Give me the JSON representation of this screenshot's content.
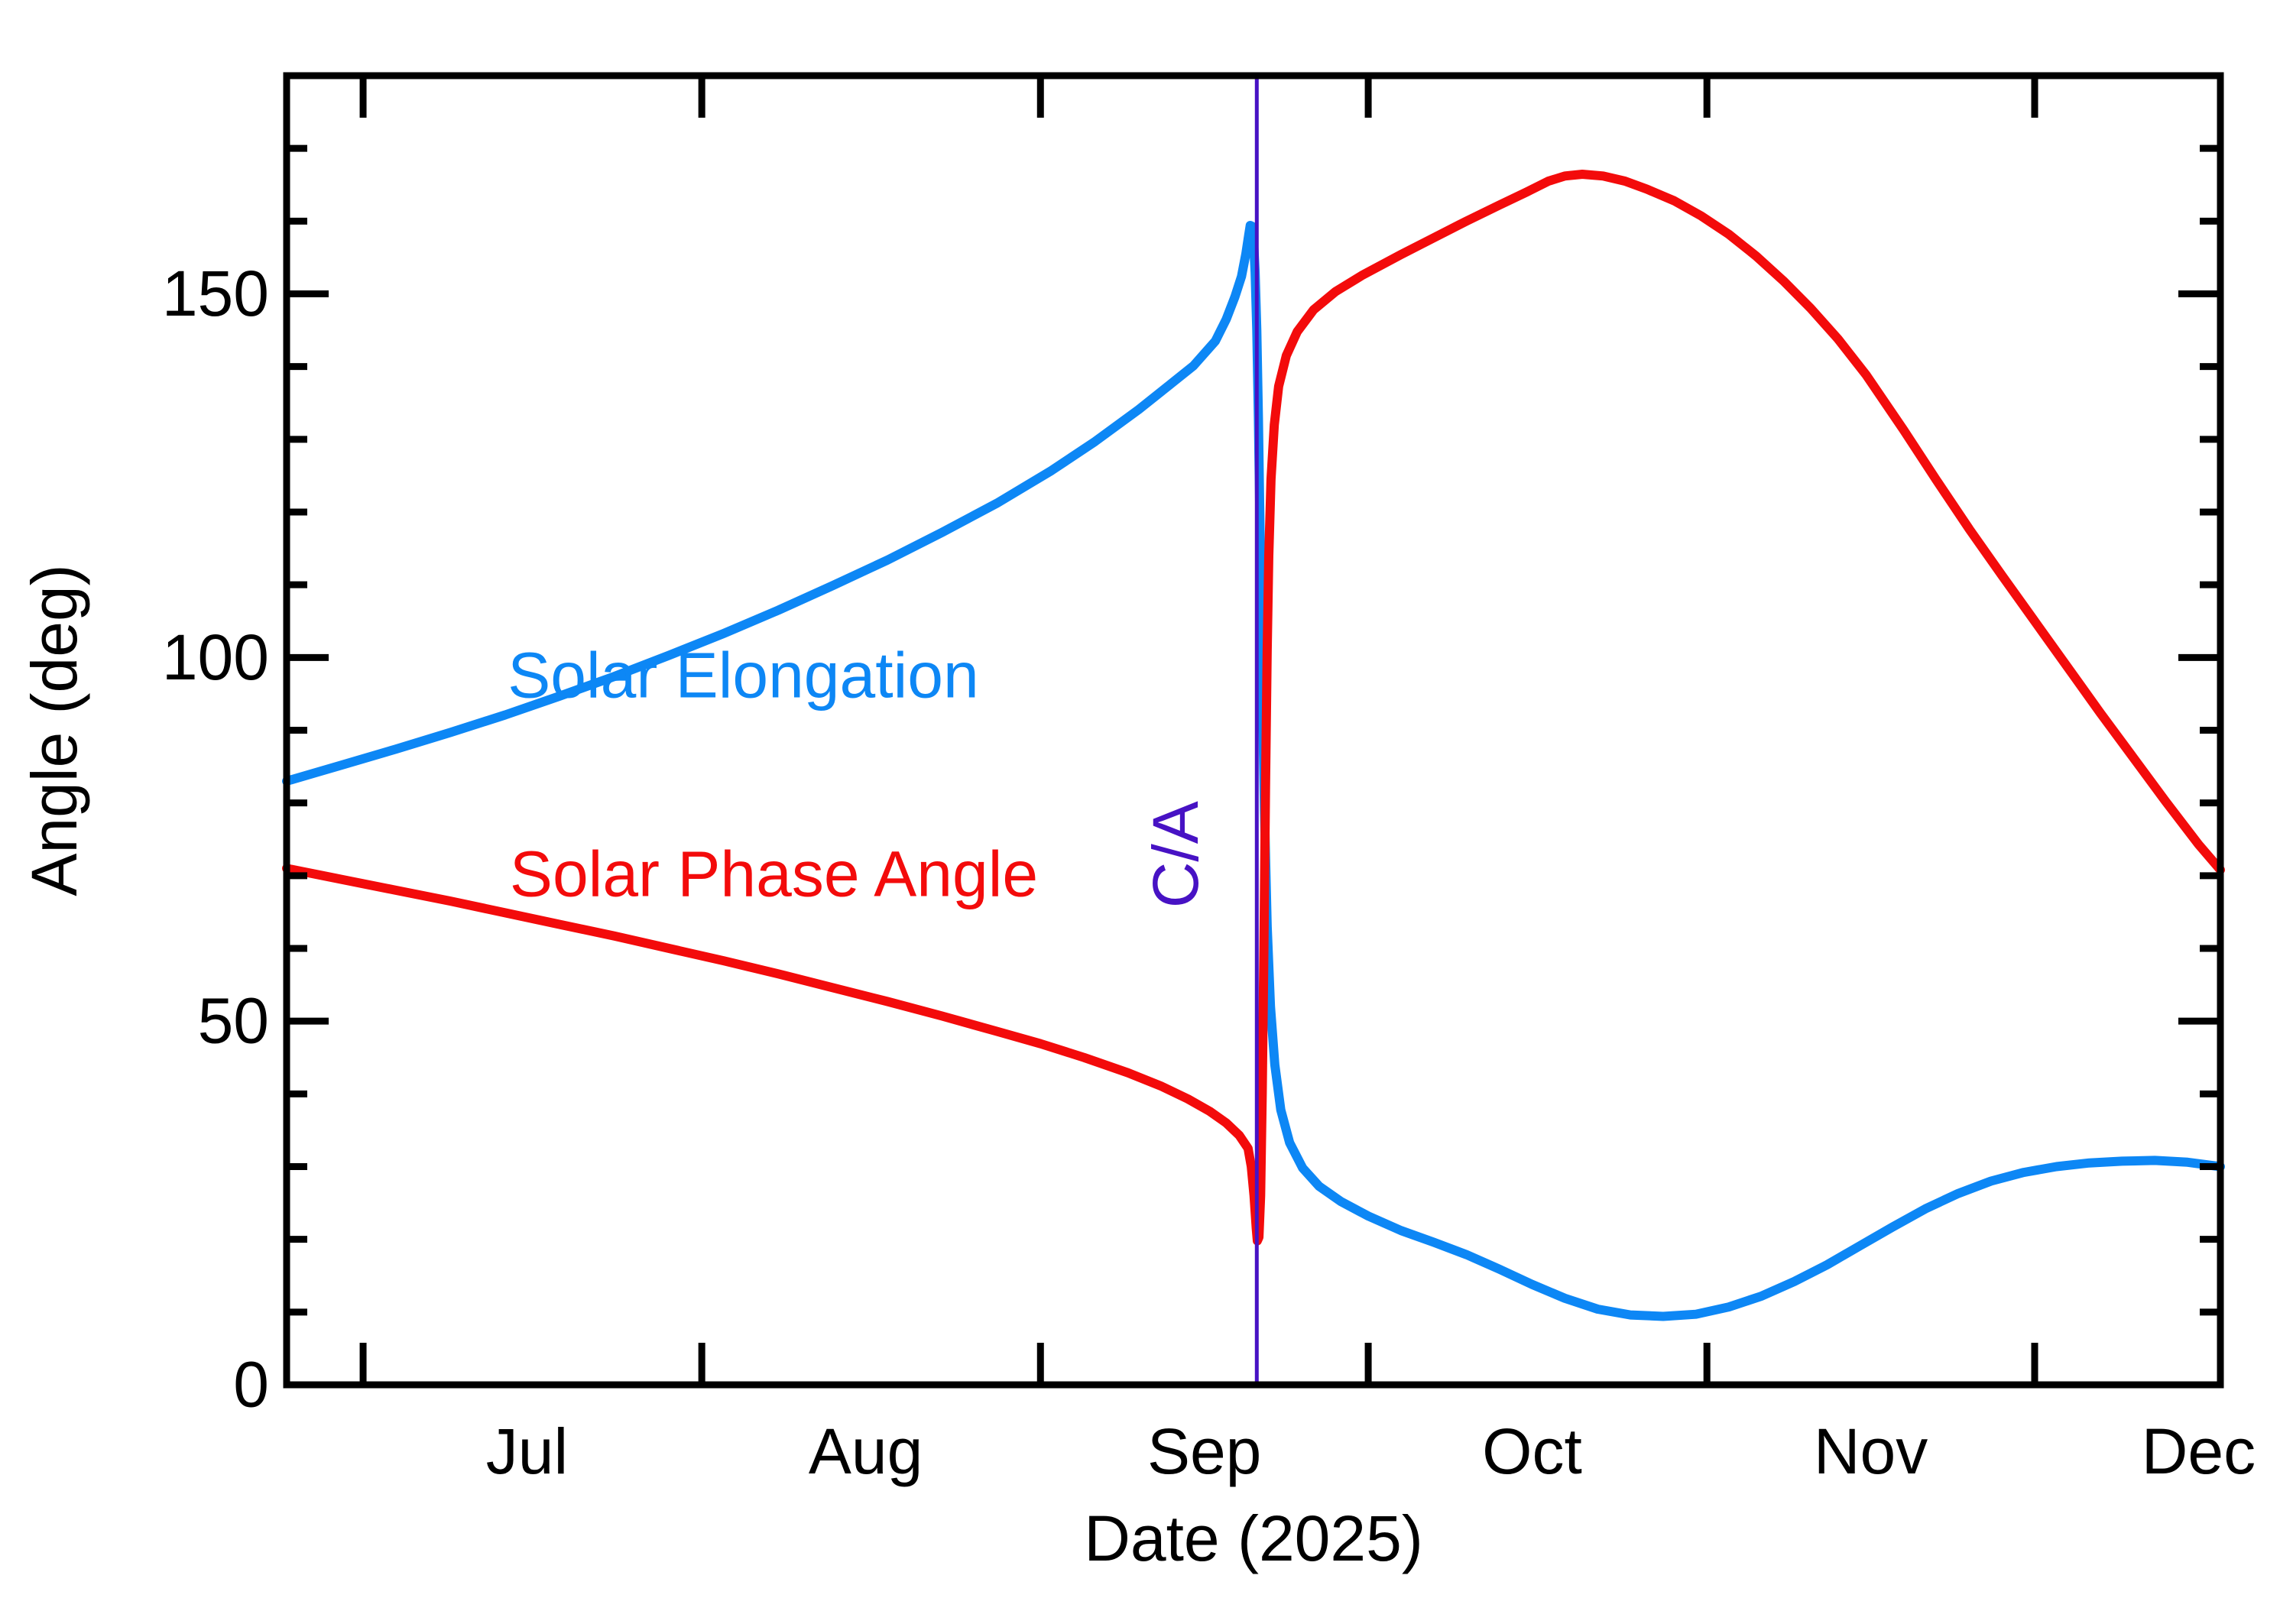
{
  "chart_data": {
    "type": "line",
    "title": "",
    "xlabel": "Date (2025)",
    "ylabel": "Angle (deg)",
    "x_axis": {
      "epoch_day0": "2025-06-24",
      "domain_days": [
        0,
        177
      ],
      "month_ticks": [
        {
          "label": "Jul",
          "start_day": 7
        },
        {
          "label": "Aug",
          "start_day": 38
        },
        {
          "label": "Sep",
          "start_day": 69
        },
        {
          "label": "Oct",
          "start_day": 99
        },
        {
          "label": "Nov",
          "start_day": 130
        },
        {
          "label": "Dec",
          "start_day": 160
        }
      ],
      "month_label_offset_days": 15
    },
    "y_axis": {
      "lim": [
        0,
        180
      ],
      "major_ticks": [
        0,
        50,
        100,
        150
      ],
      "major_tick_labels": [
        "0",
        "50",
        "100",
        "150"
      ],
      "minor_step": 10
    },
    "grid": false,
    "legend_position": "inline-curve-labels",
    "series": [
      {
        "name": "Solar Elongation",
        "color": "#0d87f5",
        "label_pos": {
          "day": 41.8,
          "deg": 94.5
        },
        "points": [
          [
            0,
            83
          ],
          [
            5,
            85.2
          ],
          [
            10,
            87.4
          ],
          [
            15,
            89.7
          ],
          [
            20,
            92.1
          ],
          [
            25,
            94.7
          ],
          [
            30,
            97.4
          ],
          [
            35,
            100.3
          ],
          [
            40,
            103.3
          ],
          [
            45,
            106.5
          ],
          [
            50,
            109.9
          ],
          [
            55,
            113.4
          ],
          [
            60,
            117.2
          ],
          [
            65,
            121.2
          ],
          [
            70,
            125.7
          ],
          [
            74,
            129.7
          ],
          [
            78,
            134.1
          ],
          [
            81,
            137.7
          ],
          [
            83,
            140.1
          ],
          [
            85,
            143.5
          ],
          [
            86,
            146.5
          ],
          [
            86.8,
            149.6
          ],
          [
            87.4,
            152.4
          ],
          [
            87.8,
            155.5
          ],
          [
            88.05,
            158
          ],
          [
            88.2,
            159.4
          ],
          [
            88.35,
            159.3
          ],
          [
            88.5,
            157.5
          ],
          [
            88.65,
            153
          ],
          [
            88.8,
            145
          ],
          [
            88.95,
            133
          ],
          [
            89.1,
            117
          ],
          [
            89.3,
            97
          ],
          [
            89.5,
            79
          ],
          [
            89.75,
            63
          ],
          [
            90.05,
            52
          ],
          [
            90.45,
            44
          ],
          [
            91,
            37.8
          ],
          [
            91.8,
            33.3
          ],
          [
            93,
            29.8
          ],
          [
            94.5,
            27.3
          ],
          [
            96.5,
            25.2
          ],
          [
            99,
            23.2
          ],
          [
            102,
            21.2
          ],
          [
            105,
            19.6
          ],
          [
            108,
            17.9
          ],
          [
            111,
            15.9
          ],
          [
            114,
            13.8
          ],
          [
            117,
            11.9
          ],
          [
            120,
            10.4
          ],
          [
            123,
            9.6
          ],
          [
            126,
            9.4
          ],
          [
            129,
            9.7
          ],
          [
            132,
            10.7
          ],
          [
            135,
            12.2
          ],
          [
            138,
            14.2
          ],
          [
            141,
            16.5
          ],
          [
            144,
            19.1
          ],
          [
            147,
            21.7
          ],
          [
            150,
            24.2
          ],
          [
            153,
            26.3
          ],
          [
            156,
            28
          ],
          [
            159,
            29.2
          ],
          [
            162,
            30
          ],
          [
            165,
            30.5
          ],
          [
            168,
            30.75
          ],
          [
            171,
            30.85
          ],
          [
            174,
            30.6
          ],
          [
            177,
            30
          ]
        ]
      },
      {
        "name": "Solar Phase Angle",
        "color": "#f30b0b",
        "label_pos": {
          "day": 44.6,
          "deg": 67.2
        },
        "points": [
          [
            0,
            71
          ],
          [
            5,
            69.5
          ],
          [
            10,
            68
          ],
          [
            15,
            66.5
          ],
          [
            20,
            64.9
          ],
          [
            25,
            63.3
          ],
          [
            30,
            61.7
          ],
          [
            35,
            60
          ],
          [
            40,
            58.3
          ],
          [
            45,
            56.5
          ],
          [
            50,
            54.6
          ],
          [
            55,
            52.7
          ],
          [
            60,
            50.7
          ],
          [
            65,
            48.6
          ],
          [
            69,
            46.9
          ],
          [
            73,
            45
          ],
          [
            77,
            42.9
          ],
          [
            80,
            41.1
          ],
          [
            82.5,
            39.3
          ],
          [
            84.5,
            37.6
          ],
          [
            86,
            36
          ],
          [
            87.2,
            34.3
          ],
          [
            88,
            32.5
          ],
          [
            88.3,
            30
          ],
          [
            88.55,
            26
          ],
          [
            88.75,
            21.5
          ],
          [
            88.85,
            19.8
          ],
          [
            89.0,
            20.3
          ],
          [
            89.15,
            26
          ],
          [
            89.3,
            40
          ],
          [
            89.45,
            60
          ],
          [
            89.6,
            82
          ],
          [
            89.75,
            101
          ],
          [
            89.9,
            114
          ],
          [
            90.1,
            124.5
          ],
          [
            90.4,
            132
          ],
          [
            90.8,
            137.3
          ],
          [
            91.5,
            141.5
          ],
          [
            92.5,
            144.8
          ],
          [
            94,
            147.8
          ],
          [
            96,
            150.3
          ],
          [
            98.5,
            152.6
          ],
          [
            102,
            155.4
          ],
          [
            105,
            157.7
          ],
          [
            108,
            160
          ],
          [
            111,
            162.2
          ],
          [
            113.5,
            164
          ],
          [
            115.5,
            165.5
          ],
          [
            117,
            166.2
          ],
          [
            118.6,
            166.45
          ],
          [
            120.5,
            166.2
          ],
          [
            122.5,
            165.5
          ],
          [
            124.5,
            164.4
          ],
          [
            127,
            162.8
          ],
          [
            129.5,
            160.7
          ],
          [
            132,
            158.2
          ],
          [
            134.5,
            155.2
          ],
          [
            137,
            151.8
          ],
          [
            139.5,
            148
          ],
          [
            142,
            143.8
          ],
          [
            144.6,
            138.8
          ],
          [
            148,
            131.3
          ],
          [
            151,
            124.4
          ],
          [
            154,
            117.7
          ],
          [
            157,
            111.3
          ],
          [
            160,
            105
          ],
          [
            163,
            98.7
          ],
          [
            166,
            92.4
          ],
          [
            169,
            86.3
          ],
          [
            172,
            80.2
          ],
          [
            175,
            74.3
          ],
          [
            177,
            70.8
          ]
        ]
      }
    ],
    "annotation": {
      "label": "C/A",
      "day": 88.8,
      "color": "#4712c4",
      "label_pos": {
        "day": 83.4,
        "deg": 72.9
      }
    }
  },
  "colors": {
    "background": "#ffffff",
    "axis": "#000000",
    "tick_label": "#000000"
  }
}
